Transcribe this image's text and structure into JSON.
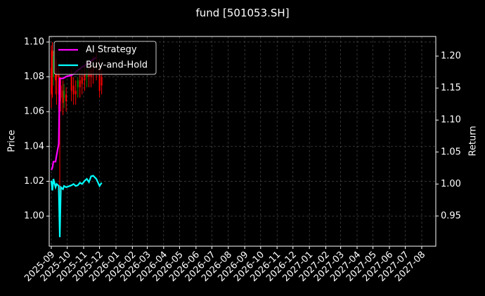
{
  "chart_data": {
    "type": "candlestick",
    "title": "fund [501053.SH]",
    "y_label": "Price",
    "y2_label": "Return",
    "x": [
      "2025-09-01",
      "2025-09-03",
      "2025-09-05",
      "2025-09-09",
      "2025-09-11",
      "2025-09-15",
      "2025-09-17",
      "2025-09-19",
      "2025-09-23",
      "2025-09-25",
      "2025-09-29",
      "2025-10-09",
      "2025-10-13",
      "2025-10-17",
      "2025-10-21",
      "2025-10-25",
      "2025-10-29",
      "2025-11-03",
      "2025-11-07",
      "2025-11-11",
      "2025-11-15",
      "2025-11-19",
      "2025-11-25",
      "2025-12-01",
      "2025-12-05"
    ],
    "open": [
      1.085,
      1.095,
      1.08,
      1.09,
      1.085,
      1.083,
      1.07,
      1.075,
      1.072,
      1.068,
      1.07,
      1.08,
      1.075,
      1.072,
      1.074,
      1.078,
      1.08,
      1.082,
      1.08,
      1.083,
      1.084,
      1.086,
      1.088,
      1.085,
      1.08
    ],
    "close": [
      1.07,
      1.08,
      1.092,
      1.078,
      1.08,
      1.07,
      1.066,
      1.068,
      1.065,
      1.072,
      1.066,
      1.072,
      1.07,
      1.07,
      1.078,
      1.074,
      1.076,
      1.078,
      1.084,
      1.08,
      1.08,
      1.082,
      1.085,
      1.072,
      1.075
    ],
    "high": [
      1.098,
      1.1,
      1.095,
      1.095,
      1.09,
      1.088,
      1.08,
      1.08,
      1.078,
      1.076,
      1.074,
      1.084,
      1.08,
      1.078,
      1.08,
      1.082,
      1.084,
      1.086,
      1.088,
      1.088,
      1.09,
      1.092,
      1.094,
      1.09,
      1.084
    ],
    "low": [
      1.062,
      1.068,
      1.075,
      1.07,
      1.064,
      1.06,
      0.99,
      1.06,
      1.058,
      1.062,
      1.06,
      1.066,
      1.064,
      1.064,
      1.068,
      1.068,
      1.07,
      1.072,
      1.074,
      1.074,
      1.074,
      1.076,
      1.078,
      1.068,
      1.07
    ],
    "up_color": "#008000",
    "down_color": "#ff0000",
    "series": [
      {
        "name": "AI Strategy",
        "color": "#ff00ff",
        "axis": "y2",
        "values": [
          1.022,
          1.025,
          1.035,
          1.035,
          1.045,
          1.063,
          1.165,
          1.165,
          1.165,
          1.166,
          1.168,
          1.17,
          1.172,
          1.175,
          1.178,
          1.18,
          1.183,
          1.185,
          1.188,
          1.19,
          1.192,
          1.195,
          1.198,
          null,
          null
        ]
      },
      {
        "name": "Buy-and-Hold",
        "color": "#00ffff",
        "axis": "y2",
        "values": [
          1.005,
          0.99,
          1.008,
          0.995,
          1.0,
          0.997,
          0.917,
          0.995,
          0.992,
          0.997,
          0.995,
          0.998,
          1.0,
          0.997,
          0.998,
          1.002,
          1.0,
          1.005,
          1.008,
          1.003,
          1.012,
          1.013,
          1.008,
          0.997,
          1.002
        ]
      }
    ],
    "xlim": [
      "2025-09",
      "2027-08"
    ],
    "xticks": [
      "2025-09",
      "2025-10",
      "2025-11",
      "2025-12",
      "2026-01",
      "2026-02",
      "2026-03",
      "2026-04",
      "2026-05",
      "2026-06",
      "2026-07",
      "2026-08",
      "2026-09",
      "2026-10",
      "2026-11",
      "2026-12",
      "2027-01",
      "2027-02",
      "2027-03",
      "2027-04",
      "2027-05",
      "2027-06",
      "2027-07",
      "2027-08"
    ],
    "ylim": [
      0.9827,
      1.1032
    ],
    "yticks": [
      {
        "value": 1,
        "label": "1.00"
      },
      1.02,
      1.04,
      1.06,
      1.08,
      {
        "value": 1.1,
        "label": "1.10"
      }
    ],
    "y2lim": [
      0.9028,
      1.2307
    ],
    "y2ticks": [
      0.95,
      {
        "value": 1,
        "label": "1.00"
      },
      1.05,
      {
        "value": 1.1,
        "label": "1.10"
      },
      1.15,
      {
        "value": 1.2,
        "label": "1.20"
      }
    ],
    "grid": true,
    "legend": "upper left"
  }
}
